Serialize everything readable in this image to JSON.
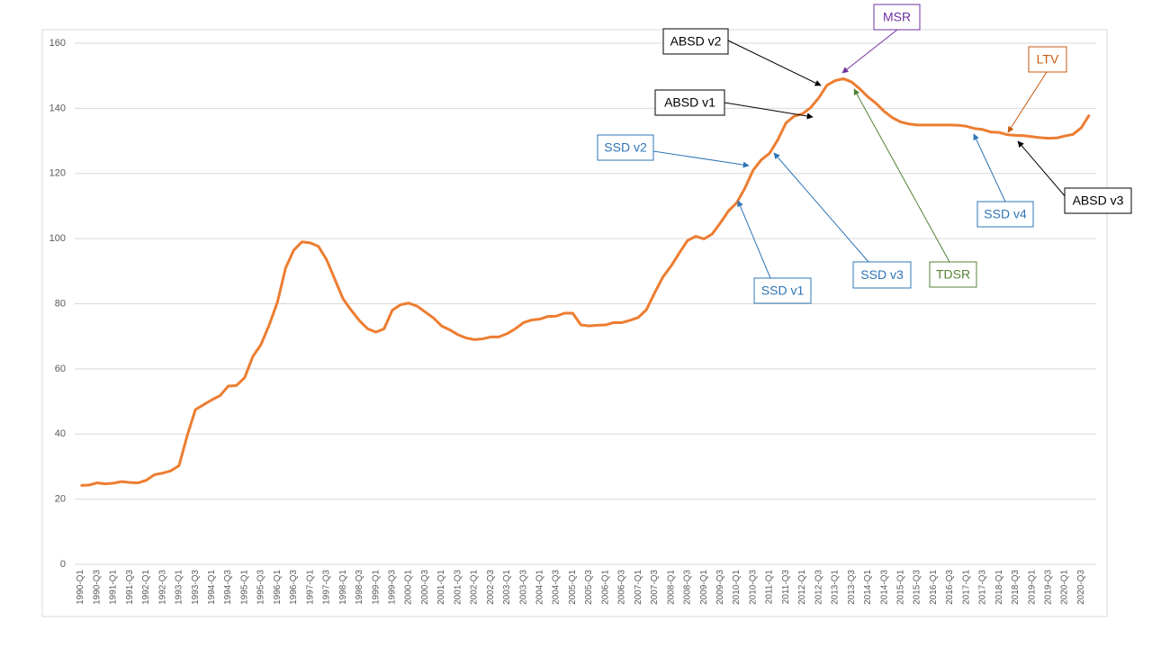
{
  "chart_data": {
    "type": "line",
    "color": "#ed7d31",
    "categories": [
      "1990-Q1",
      null,
      "1990-Q3",
      null,
      "1991-Q1",
      null,
      "1991-Q3",
      null,
      "1992-Q1",
      null,
      "1992-Q3",
      null,
      "1993-Q1",
      null,
      "1993-Q3",
      null,
      "1994-Q1",
      null,
      "1994-Q3",
      null,
      "1995-Q1",
      null,
      "1995-Q3",
      null,
      "1996-Q1",
      null,
      "1996-Q3",
      null,
      "1997-Q1",
      null,
      "1997-Q3",
      null,
      "1998-Q1",
      null,
      "1998-Q3",
      null,
      "1999-Q1",
      null,
      "1999-Q3",
      null,
      "2000-Q1",
      null,
      "2000-Q3",
      null,
      "2001-Q1",
      null,
      "2001-Q3",
      null,
      "2002-Q1",
      null,
      "2002-Q3",
      null,
      "2003-Q1",
      null,
      "2003-Q3",
      null,
      "2004-Q1",
      null,
      "2004-Q3",
      null,
      "2005-Q1",
      null,
      "2005-Q3",
      null,
      "2006-Q1",
      null,
      "2006-Q3",
      null,
      "2007-Q1",
      null,
      "2007-Q3",
      null,
      "2008-Q1",
      null,
      "2008-Q3",
      null,
      "2009-Q1",
      null,
      "2009-Q3",
      null,
      "2010-Q1",
      null,
      "2010-Q3",
      null,
      "2011-Q1",
      null,
      "2011-Q3",
      null,
      "2012-Q1",
      null,
      "2012-Q3",
      null,
      "2013-Q1",
      null,
      "2013-Q3",
      null,
      "2014-Q1",
      null,
      "2014-Q3",
      null,
      "2015-Q1",
      null,
      "2015-Q3",
      null,
      "2016-Q1",
      null,
      "2016-Q3",
      null,
      "2017-Q1",
      null,
      "2017-Q3",
      null,
      "2018-Q1",
      null,
      "2018-Q3",
      null,
      "2019-Q1",
      null,
      "2019-Q3",
      null,
      "2020-Q1",
      null,
      "2020-Q3",
      null
    ],
    "values": [
      24.2,
      24.3,
      25,
      24.7,
      24.9,
      25.4,
      25.1,
      25,
      25.8,
      27.5,
      28,
      28.7,
      30.3,
      39.5,
      47.5,
      49,
      50.5,
      51.8,
      54.7,
      54.9,
      57.3,
      63.8,
      67.5,
      73.5,
      80.5,
      91,
      96.5,
      99,
      98.7,
      97.6,
      93.5,
      87.5,
      81.5,
      78,
      74.8,
      72.3,
      71.3,
      72.3,
      78,
      79.7,
      80.2,
      79.3,
      77.5,
      75.7,
      73.2,
      72,
      70.5,
      69.5,
      69,
      69.2,
      69.8,
      69.8,
      70.8,
      72.3,
      74.2,
      75,
      75.3,
      76.1,
      76.2,
      77.1,
      77.1,
      73.5,
      73.2,
      73.4,
      73.5,
      74.2,
      74.2,
      74.9,
      75.8,
      78.2,
      83.4,
      88.2,
      91.6,
      95.6,
      99.4,
      100.7,
      99.9,
      101.4,
      104.8,
      108.5,
      111,
      115.5,
      121,
      124.2,
      126.2,
      130.3,
      135.5,
      137.6,
      138.3,
      140.2,
      143.2,
      147.1,
      148.5,
      149.1,
      148.1,
      146,
      143.5,
      141.5,
      139,
      137.1,
      135.8,
      135.2,
      134.9,
      134.9,
      134.9,
      134.9,
      134.9,
      134.8,
      134.5,
      133.8,
      133.5,
      132.7,
      132.6,
      131.9,
      131.7,
      131.6,
      131.3,
      131,
      130.8,
      130.9,
      131.5,
      132,
      134,
      138
    ],
    "ylim": [
      0,
      160
    ],
    "yticks": [
      0,
      20,
      40,
      60,
      80,
      100,
      120,
      140,
      160
    ],
    "grid": true,
    "annotations": [
      {
        "text": "ABSD v2",
        "color": "#000000"
      },
      {
        "text": "MSR",
        "color": "#7030a0"
      },
      {
        "text": "LTV",
        "color": "#c55a11"
      },
      {
        "text": "ABSD v1",
        "color": "#000000"
      },
      {
        "text": "SSD v2",
        "color": "#2e75b6"
      },
      {
        "text": "SSD v1",
        "color": "#2e75b6"
      },
      {
        "text": "SSD v3",
        "color": "#2e75b6"
      },
      {
        "text": "TDSR",
        "color": "#548235"
      },
      {
        "text": "SSD v4",
        "color": "#2e75b6"
      },
      {
        "text": "ABSD v3",
        "color": "#000000"
      }
    ]
  }
}
